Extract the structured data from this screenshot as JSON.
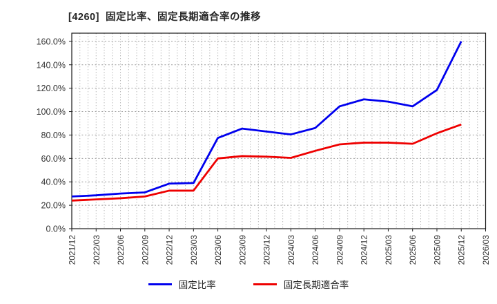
{
  "title": "[4260]  固定比率、固定長期適合率の推移",
  "chart_data": {
    "type": "line",
    "title": "[4260] 固定比率、固定長期適合率の推移",
    "categories": [
      "2021/12",
      "2022/03",
      "2022/06",
      "2022/09",
      "2022/12",
      "2023/03",
      "2023/06",
      "2023/09",
      "2023/12",
      "2024/03",
      "2024/06",
      "2024/09",
      "2024/12",
      "2025/03",
      "2025/06",
      "2025/09",
      "2025/12",
      "2026/03"
    ],
    "series": [
      {
        "id": "fixed-ratio",
        "name": "固定比率",
        "color": "#0000ee",
        "values": [
          27.5,
          28.5,
          30,
          31,
          38.5,
          39,
          77.5,
          85.5,
          83,
          80.5,
          86,
          104.5,
          110.5,
          108.5,
          104.5,
          118.5,
          160,
          null
        ]
      },
      {
        "id": "fixed-long-term-ratio",
        "name": "固定長期適合率",
        "color": "#ee0000",
        "values": [
          24,
          25,
          26,
          27.5,
          32.5,
          32.5,
          60,
          62,
          61.5,
          60.5,
          66.5,
          72,
          73.5,
          73.5,
          72.5,
          81.5,
          89,
          null
        ]
      }
    ],
    "y_ticks": [
      "0.0%",
      "20.0%",
      "40.0%",
      "60.0%",
      "80.0%",
      "100.0%",
      "120.0%",
      "140.0%",
      "160.0%"
    ],
    "y_tick_step": 20,
    "ylim": [
      0,
      167
    ],
    "xlabel": "",
    "ylabel": "",
    "grid": true,
    "legend_position": "bottom"
  }
}
